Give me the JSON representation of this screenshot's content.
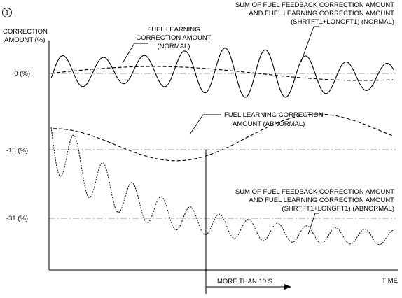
{
  "figure": {
    "marker": "1",
    "y_axis_label_lines": [
      "CORRECTION",
      "AMOUNT (%)"
    ],
    "x_axis_label": "TIME",
    "reference_levels": [
      {
        "label": "0 (%)",
        "value": 0
      },
      {
        "label": "-15 (%)",
        "value": -15
      },
      {
        "label": "-31 (%)",
        "value": -31
      }
    ],
    "annotations": {
      "fuel_learning_normal": [
        "FUEL LEARNING",
        "CORRECTION AMOUNT",
        "(NORMAL)"
      ],
      "sum_normal": [
        "SUM OF FUEL FEEDBACK CORRECTION AMOUNT",
        "AND FUEL LEARNING CORRECTION AMOUNT",
        "(SHRTFT1+LONGFT1) (NORMAL)"
      ],
      "fuel_learning_abnormal": [
        "FUEL LEARNING CORRECTION",
        "AMOUNT (ABNORMAL)"
      ],
      "sum_abnormal": [
        "SUM OF FUEL FEEDBACK CORRECTION AMOUNT",
        "AND FUEL LEARNING CORRECTION AMOUNT",
        "(SHRTFT1+LONGFT1) (ABNORMAL)"
      ]
    },
    "duration_label": "MORE THAN 10 S"
  }
}
